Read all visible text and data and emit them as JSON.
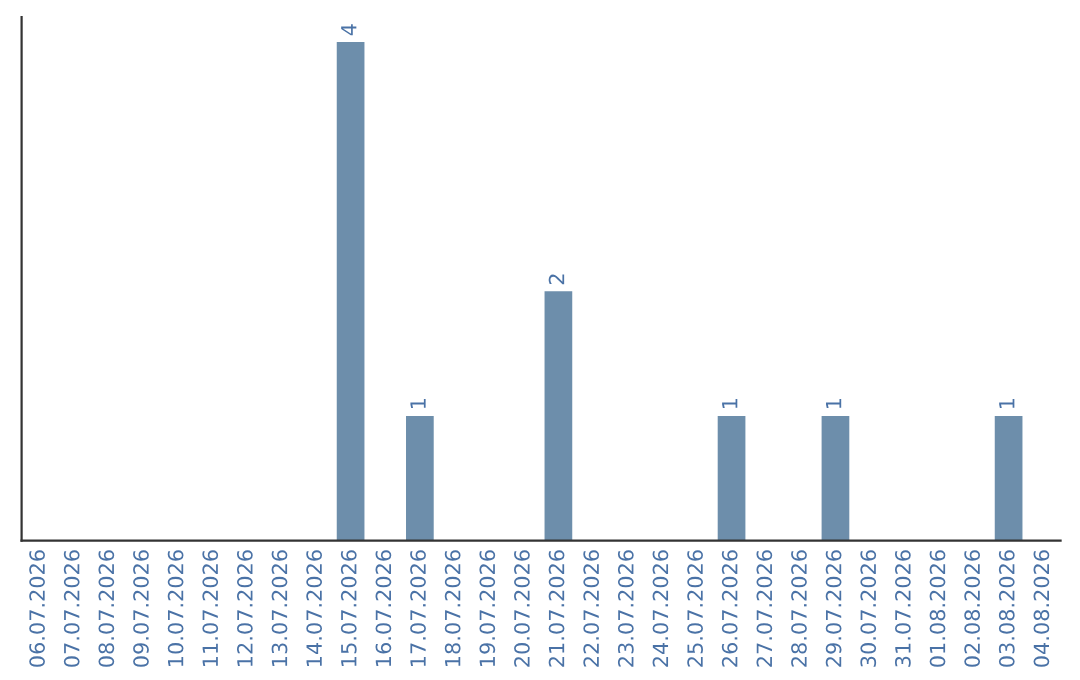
{
  "chart_data": {
    "type": "bar",
    "categories": [
      "06.07.2026",
      "07.07.2026",
      "08.07.2026",
      "09.07.2026",
      "10.07.2026",
      "11.07.2026",
      "12.07.2026",
      "13.07.2026",
      "14.07.2026",
      "15.07.2026",
      "16.07.2026",
      "17.07.2026",
      "18.07.2026",
      "19.07.2026",
      "20.07.2026",
      "21.07.2026",
      "22.07.2026",
      "23.07.2026",
      "24.07.2026",
      "25.07.2026",
      "26.07.2026",
      "27.07.2026",
      "28.07.2026",
      "29.07.2026",
      "30.07.2026",
      "31.07.2026",
      "01.08.2026",
      "02.08.2026",
      "03.08.2026",
      "04.08.2026"
    ],
    "values": [
      null,
      null,
      null,
      null,
      null,
      null,
      null,
      null,
      null,
      4,
      null,
      1,
      null,
      null,
      null,
      2,
      null,
      null,
      null,
      null,
      1,
      null,
      null,
      1,
      null,
      null,
      null,
      null,
      1,
      null
    ],
    "value_labels": [
      null,
      null,
      null,
      null,
      null,
      null,
      null,
      null,
      null,
      "4",
      null,
      "1",
      null,
      null,
      null,
      "2",
      null,
      null,
      null,
      null,
      "1",
      null,
      null,
      "1",
      null,
      null,
      null,
      null,
      "1",
      null
    ],
    "color": "#6d8eab",
    "tick_labels": "x",
    "grid": false,
    "legend": false
  }
}
